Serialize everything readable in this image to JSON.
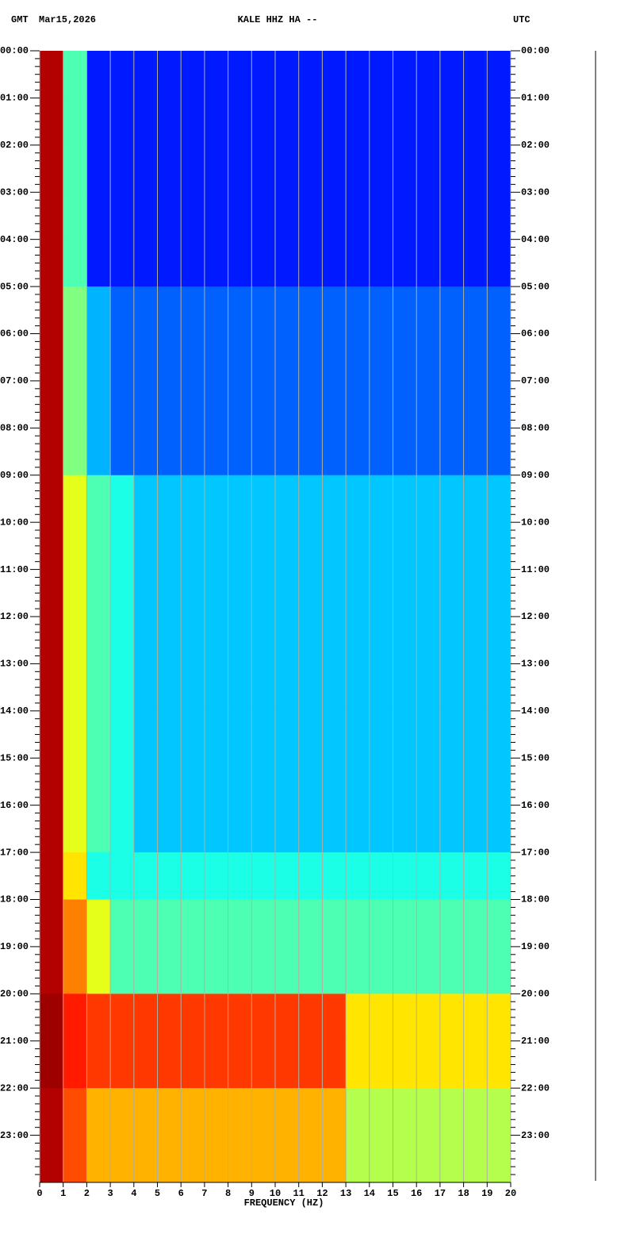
{
  "chart_data": {
    "type": "spectrogram",
    "title": "KALE HHZ HA --",
    "left_label": "GMT",
    "date": "Mar15,2026",
    "right_label": "UTC",
    "x_label": "FREQUENCY (HZ)",
    "colormap": "jet",
    "grid": true,
    "xlim": [
      0,
      20
    ],
    "xticks": [
      0,
      1,
      2,
      3,
      4,
      5,
      6,
      7,
      8,
      9,
      10,
      11,
      12,
      13,
      14,
      15,
      16,
      17,
      18,
      19,
      20
    ],
    "ylim": [
      0,
      24
    ],
    "yticks": [
      {
        "value": 0,
        "label": "00:00"
      },
      {
        "value": 1,
        "label": "01:00"
      },
      {
        "value": 2,
        "label": "02:00"
      },
      {
        "value": 3,
        "label": "03:00"
      },
      {
        "value": 4,
        "label": "04:00"
      },
      {
        "value": 5,
        "label": "05:00"
      },
      {
        "value": 6,
        "label": "06:00"
      },
      {
        "value": 7,
        "label": "07:00"
      },
      {
        "value": 8,
        "label": "08:00"
      },
      {
        "value": 9,
        "label": "09:00"
      },
      {
        "value": 10,
        "label": "10:00"
      },
      {
        "value": 11,
        "label": "11:00"
      },
      {
        "value": 12,
        "label": "12:00"
      },
      {
        "value": 13,
        "label": "13:00"
      },
      {
        "value": 14,
        "label": "14:00"
      },
      {
        "value": 15,
        "label": "15:00"
      },
      {
        "value": 16,
        "label": "16:00"
      },
      {
        "value": 17,
        "label": "17:00"
      },
      {
        "value": 18,
        "label": "18:00"
      },
      {
        "value": 19,
        "label": "19:00"
      },
      {
        "value": 20,
        "label": "20:00"
      },
      {
        "value": 21,
        "label": "21:00"
      },
      {
        "value": 22,
        "label": "22:00"
      },
      {
        "value": 23,
        "label": "23:00"
      }
    ],
    "freq_bins": [
      0,
      1,
      2,
      3,
      4,
      5,
      6,
      7,
      8,
      9,
      10,
      11,
      12,
      13,
      14,
      15,
      16,
      17,
      18,
      19,
      20
    ],
    "hour_bins": [
      0,
      1,
      2,
      3,
      4,
      5,
      6,
      7,
      8,
      9,
      10,
      11,
      12,
      13,
      14,
      15,
      16,
      17,
      18,
      19,
      20,
      21,
      22,
      23,
      24
    ],
    "values": [
      [
        0.95,
        0.45,
        0.15,
        0.15,
        0.15,
        0.15,
        0.15,
        0.15,
        0.15,
        0.15,
        0.15,
        0.15,
        0.15,
        0.15,
        0.15,
        0.15,
        0.15,
        0.15,
        0.15,
        0.15
      ],
      [
        0.95,
        0.45,
        0.15,
        0.15,
        0.15,
        0.15,
        0.15,
        0.15,
        0.15,
        0.15,
        0.15,
        0.15,
        0.15,
        0.15,
        0.15,
        0.15,
        0.15,
        0.15,
        0.15,
        0.15
      ],
      [
        0.95,
        0.45,
        0.15,
        0.15,
        0.15,
        0.15,
        0.15,
        0.15,
        0.15,
        0.15,
        0.15,
        0.15,
        0.15,
        0.15,
        0.15,
        0.15,
        0.15,
        0.15,
        0.15,
        0.15
      ],
      [
        0.95,
        0.45,
        0.15,
        0.15,
        0.15,
        0.15,
        0.15,
        0.15,
        0.15,
        0.15,
        0.15,
        0.15,
        0.15,
        0.15,
        0.15,
        0.15,
        0.15,
        0.15,
        0.15,
        0.15
      ],
      [
        0.95,
        0.45,
        0.15,
        0.15,
        0.15,
        0.15,
        0.15,
        0.15,
        0.15,
        0.15,
        0.15,
        0.15,
        0.15,
        0.15,
        0.15,
        0.15,
        0.15,
        0.15,
        0.15,
        0.15
      ],
      [
        0.95,
        0.5,
        0.3,
        0.22,
        0.22,
        0.22,
        0.22,
        0.22,
        0.22,
        0.22,
        0.22,
        0.22,
        0.22,
        0.22,
        0.22,
        0.22,
        0.22,
        0.22,
        0.22,
        0.22
      ],
      [
        0.95,
        0.5,
        0.3,
        0.22,
        0.22,
        0.22,
        0.22,
        0.22,
        0.22,
        0.22,
        0.22,
        0.22,
        0.22,
        0.22,
        0.22,
        0.22,
        0.22,
        0.22,
        0.22,
        0.22
      ],
      [
        0.95,
        0.5,
        0.3,
        0.22,
        0.22,
        0.22,
        0.22,
        0.22,
        0.22,
        0.22,
        0.22,
        0.22,
        0.22,
        0.22,
        0.22,
        0.22,
        0.22,
        0.22,
        0.22,
        0.22
      ],
      [
        0.95,
        0.5,
        0.3,
        0.22,
        0.22,
        0.22,
        0.22,
        0.22,
        0.22,
        0.22,
        0.22,
        0.22,
        0.22,
        0.22,
        0.22,
        0.22,
        0.22,
        0.22,
        0.22,
        0.22
      ],
      [
        0.95,
        0.6,
        0.45,
        0.4,
        0.32,
        0.32,
        0.32,
        0.32,
        0.32,
        0.32,
        0.32,
        0.32,
        0.32,
        0.32,
        0.32,
        0.32,
        0.32,
        0.32,
        0.32,
        0.32
      ],
      [
        0.95,
        0.6,
        0.45,
        0.4,
        0.32,
        0.32,
        0.32,
        0.32,
        0.32,
        0.32,
        0.32,
        0.32,
        0.32,
        0.32,
        0.32,
        0.32,
        0.32,
        0.32,
        0.32,
        0.32
      ],
      [
        0.95,
        0.6,
        0.45,
        0.4,
        0.32,
        0.32,
        0.32,
        0.32,
        0.32,
        0.32,
        0.32,
        0.32,
        0.32,
        0.32,
        0.32,
        0.32,
        0.32,
        0.32,
        0.32,
        0.32
      ],
      [
        0.95,
        0.6,
        0.45,
        0.4,
        0.32,
        0.32,
        0.32,
        0.32,
        0.32,
        0.32,
        0.32,
        0.32,
        0.32,
        0.32,
        0.32,
        0.32,
        0.32,
        0.32,
        0.32,
        0.32
      ],
      [
        0.95,
        0.6,
        0.45,
        0.4,
        0.32,
        0.32,
        0.32,
        0.32,
        0.32,
        0.32,
        0.32,
        0.32,
        0.32,
        0.32,
        0.32,
        0.32,
        0.32,
        0.32,
        0.32,
        0.32
      ],
      [
        0.95,
        0.6,
        0.45,
        0.4,
        0.32,
        0.32,
        0.32,
        0.32,
        0.32,
        0.32,
        0.32,
        0.32,
        0.32,
        0.32,
        0.32,
        0.32,
        0.32,
        0.32,
        0.32,
        0.32
      ],
      [
        0.95,
        0.6,
        0.45,
        0.4,
        0.32,
        0.32,
        0.32,
        0.32,
        0.32,
        0.32,
        0.32,
        0.32,
        0.32,
        0.32,
        0.32,
        0.32,
        0.32,
        0.32,
        0.32,
        0.32
      ],
      [
        0.95,
        0.6,
        0.45,
        0.4,
        0.32,
        0.32,
        0.32,
        0.32,
        0.32,
        0.32,
        0.32,
        0.32,
        0.32,
        0.32,
        0.32,
        0.32,
        0.32,
        0.32,
        0.32,
        0.32
      ],
      [
        0.95,
        0.65,
        0.4,
        0.4,
        0.4,
        0.4,
        0.4,
        0.4,
        0.4,
        0.4,
        0.4,
        0.4,
        0.4,
        0.4,
        0.4,
        0.4,
        0.4,
        0.4,
        0.4,
        0.4
      ],
      [
        0.95,
        0.75,
        0.6,
        0.45,
        0.45,
        0.45,
        0.45,
        0.45,
        0.45,
        0.45,
        0.45,
        0.45,
        0.45,
        0.45,
        0.45,
        0.45,
        0.45,
        0.45,
        0.45,
        0.45
      ],
      [
        0.95,
        0.75,
        0.6,
        0.45,
        0.45,
        0.45,
        0.45,
        0.45,
        0.45,
        0.45,
        0.45,
        0.45,
        0.45,
        0.45,
        0.45,
        0.45,
        0.45,
        0.45,
        0.45,
        0.45
      ],
      [
        0.97,
        0.85,
        0.82,
        0.82,
        0.82,
        0.82,
        0.82,
        0.82,
        0.82,
        0.82,
        0.82,
        0.82,
        0.82,
        0.65,
        0.65,
        0.65,
        0.65,
        0.65,
        0.65,
        0.65
      ],
      [
        0.97,
        0.85,
        0.82,
        0.82,
        0.82,
        0.82,
        0.82,
        0.82,
        0.82,
        0.82,
        0.82,
        0.82,
        0.82,
        0.65,
        0.65,
        0.65,
        0.65,
        0.65,
        0.65,
        0.65
      ],
      [
        0.95,
        0.8,
        0.7,
        0.7,
        0.7,
        0.7,
        0.7,
        0.7,
        0.7,
        0.7,
        0.7,
        0.7,
        0.7,
        0.55,
        0.55,
        0.55,
        0.55,
        0.55,
        0.55,
        0.55
      ],
      [
        0.95,
        0.8,
        0.7,
        0.7,
        0.7,
        0.7,
        0.7,
        0.7,
        0.7,
        0.7,
        0.7,
        0.7,
        0.7,
        0.55,
        0.55,
        0.55,
        0.55,
        0.55,
        0.55,
        0.55
      ]
    ]
  }
}
